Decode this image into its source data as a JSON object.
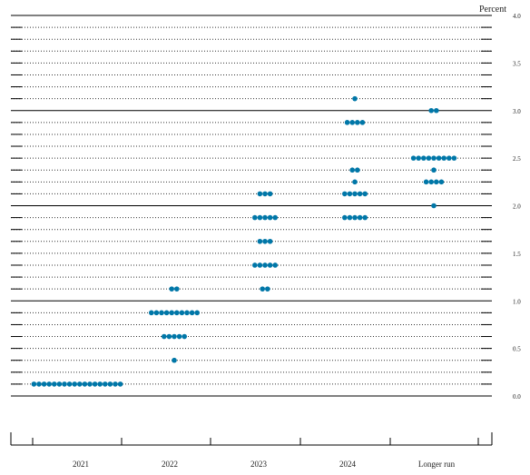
{
  "chart_data": {
    "type": "scatter",
    "ylabel": "Percent",
    "ylim": [
      0,
      4
    ],
    "y_step": 0.125,
    "y_tick_labels": [
      "0.0",
      "0.5",
      "1.0",
      "1.5",
      "2.0",
      "2.5",
      "3.0",
      "3.5",
      "4.0"
    ],
    "categories": [
      "2021",
      "2022",
      "2023",
      "2024",
      "Longer run"
    ],
    "dot_color": "#0077a8",
    "series": [
      {
        "category": "2021",
        "points": [
          {
            "y": 0.125,
            "count": 18
          }
        ]
      },
      {
        "category": "2022",
        "points": [
          {
            "y": 0.375,
            "count": 1
          },
          {
            "y": 0.625,
            "count": 5
          },
          {
            "y": 0.875,
            "count": 10
          },
          {
            "y": 1.125,
            "count": 2
          }
        ]
      },
      {
        "category": "2023",
        "points": [
          {
            "y": 1.125,
            "count": 2
          },
          {
            "y": 1.375,
            "count": 5
          },
          {
            "y": 1.625,
            "count": 3
          },
          {
            "y": 1.875,
            "count": 5
          },
          {
            "y": 2.125,
            "count": 3
          }
        ]
      },
      {
        "category": "2024",
        "points": [
          {
            "y": 1.875,
            "count": 5
          },
          {
            "y": 2.125,
            "count": 5
          },
          {
            "y": 2.25,
            "count": 1
          },
          {
            "y": 2.375,
            "count": 2
          },
          {
            "y": 2.875,
            "count": 4
          },
          {
            "y": 3.125,
            "count": 1
          }
        ]
      },
      {
        "category": "Longer run",
        "points": [
          {
            "y": 2.0,
            "count": 1
          },
          {
            "y": 2.25,
            "count": 4
          },
          {
            "y": 2.375,
            "count": 1
          },
          {
            "y": 2.5,
            "count": 9
          },
          {
            "y": 3.0,
            "count": 2
          }
        ]
      }
    ]
  }
}
